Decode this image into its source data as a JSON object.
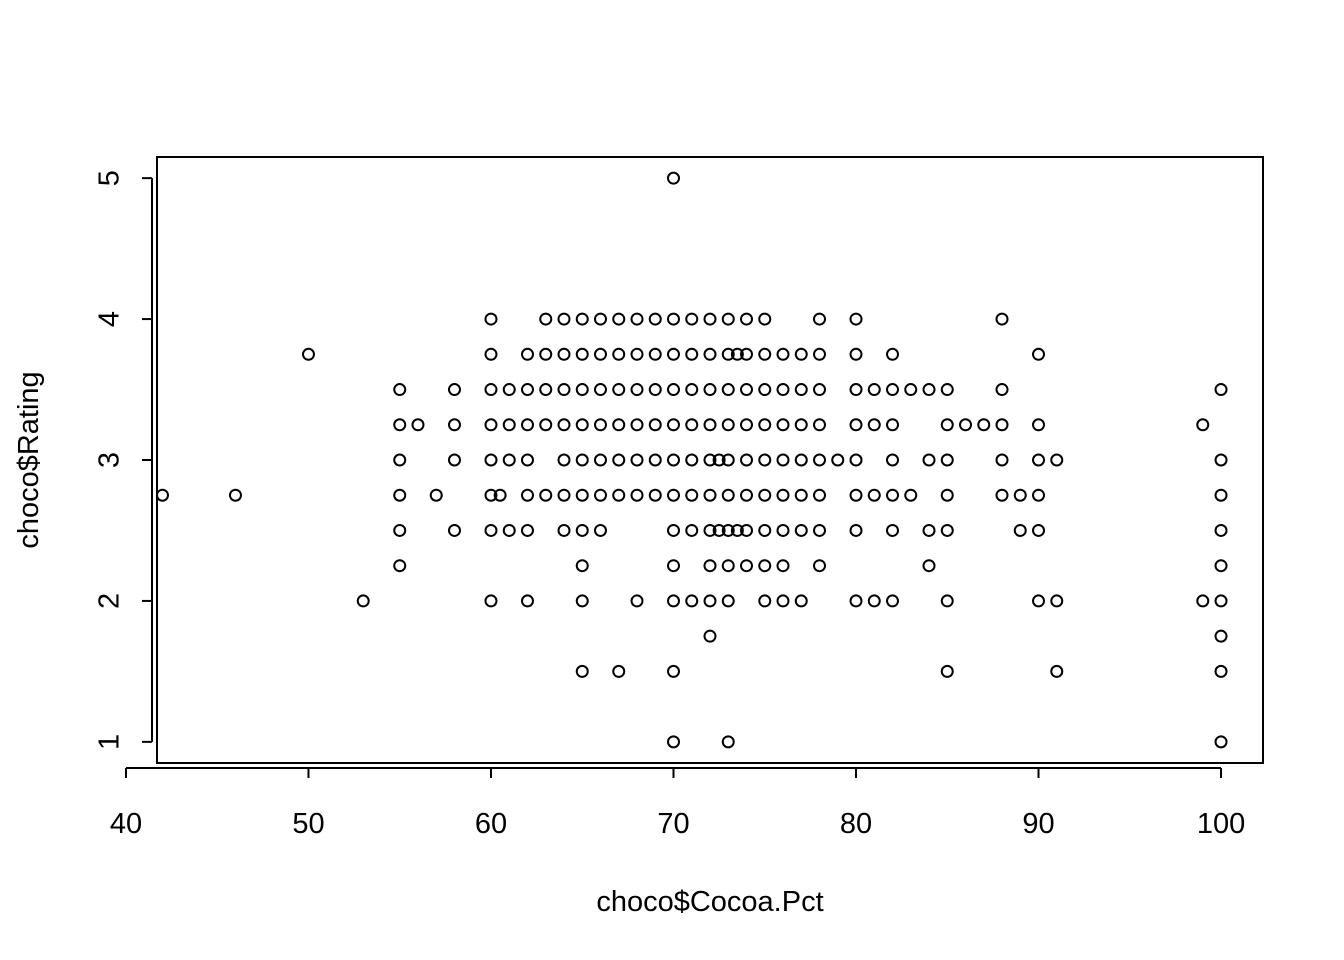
{
  "chart_data": {
    "type": "scatter",
    "xlabel": "choco$Cocoa.Pct",
    "ylabel": "choco$Rating",
    "x_ticks": [
      40,
      50,
      60,
      70,
      80,
      90,
      100
    ],
    "y_ticks": [
      1,
      2,
      3,
      4,
      5
    ],
    "xlim": [
      41.7,
      102.3
    ],
    "ylim": [
      0.85,
      5.15
    ],
    "grid": false,
    "legend": "none",
    "points": [
      [
        70,
        5
      ],
      [
        60,
        4
      ],
      [
        63,
        4
      ],
      [
        64,
        4
      ],
      [
        65,
        4
      ],
      [
        66,
        4
      ],
      [
        67,
        4
      ],
      [
        68,
        4
      ],
      [
        69,
        4
      ],
      [
        70,
        4
      ],
      [
        71,
        4
      ],
      [
        72,
        4
      ],
      [
        73,
        4
      ],
      [
        74,
        4
      ],
      [
        75,
        4
      ],
      [
        78,
        4
      ],
      [
        80,
        4
      ],
      [
        88,
        4
      ],
      [
        50,
        3.75
      ],
      [
        60,
        3.75
      ],
      [
        62,
        3.75
      ],
      [
        63,
        3.75
      ],
      [
        64,
        3.75
      ],
      [
        65,
        3.75
      ],
      [
        66,
        3.75
      ],
      [
        67,
        3.75
      ],
      [
        68,
        3.75
      ],
      [
        69,
        3.75
      ],
      [
        70,
        3.75
      ],
      [
        71,
        3.75
      ],
      [
        72,
        3.75
      ],
      [
        73,
        3.75
      ],
      [
        73.5,
        3.75
      ],
      [
        74,
        3.75
      ],
      [
        75,
        3.75
      ],
      [
        76,
        3.75
      ],
      [
        77,
        3.75
      ],
      [
        78,
        3.75
      ],
      [
        80,
        3.75
      ],
      [
        82,
        3.75
      ],
      [
        90,
        3.75
      ],
      [
        55,
        3.5
      ],
      [
        58,
        3.5
      ],
      [
        60,
        3.5
      ],
      [
        61,
        3.5
      ],
      [
        62,
        3.5
      ],
      [
        63,
        3.5
      ],
      [
        64,
        3.5
      ],
      [
        65,
        3.5
      ],
      [
        66,
        3.5
      ],
      [
        67,
        3.5
      ],
      [
        68,
        3.5
      ],
      [
        69,
        3.5
      ],
      [
        70,
        3.5
      ],
      [
        71,
        3.5
      ],
      [
        72,
        3.5
      ],
      [
        73,
        3.5
      ],
      [
        74,
        3.5
      ],
      [
        75,
        3.5
      ],
      [
        76,
        3.5
      ],
      [
        77,
        3.5
      ],
      [
        78,
        3.5
      ],
      [
        80,
        3.5
      ],
      [
        81,
        3.5
      ],
      [
        82,
        3.5
      ],
      [
        83,
        3.5
      ],
      [
        84,
        3.5
      ],
      [
        85,
        3.5
      ],
      [
        88,
        3.5
      ],
      [
        100,
        3.5
      ],
      [
        55,
        3.25
      ],
      [
        56,
        3.25
      ],
      [
        58,
        3.25
      ],
      [
        60,
        3.25
      ],
      [
        61,
        3.25
      ],
      [
        62,
        3.25
      ],
      [
        63,
        3.25
      ],
      [
        64,
        3.25
      ],
      [
        65,
        3.25
      ],
      [
        66,
        3.25
      ],
      [
        67,
        3.25
      ],
      [
        68,
        3.25
      ],
      [
        69,
        3.25
      ],
      [
        70,
        3.25
      ],
      [
        71,
        3.25
      ],
      [
        72,
        3.25
      ],
      [
        73,
        3.25
      ],
      [
        74,
        3.25
      ],
      [
        75,
        3.25
      ],
      [
        76,
        3.25
      ],
      [
        77,
        3.25
      ],
      [
        78,
        3.25
      ],
      [
        80,
        3.25
      ],
      [
        81,
        3.25
      ],
      [
        82,
        3.25
      ],
      [
        85,
        3.25
      ],
      [
        86,
        3.25
      ],
      [
        87,
        3.25
      ],
      [
        88,
        3.25
      ],
      [
        90,
        3.25
      ],
      [
        99,
        3.25
      ],
      [
        55,
        3
      ],
      [
        58,
        3
      ],
      [
        60,
        3
      ],
      [
        61,
        3
      ],
      [
        62,
        3
      ],
      [
        64,
        3
      ],
      [
        65,
        3
      ],
      [
        66,
        3
      ],
      [
        67,
        3
      ],
      [
        68,
        3
      ],
      [
        69,
        3
      ],
      [
        70,
        3
      ],
      [
        71,
        3
      ],
      [
        72,
        3
      ],
      [
        72.5,
        3
      ],
      [
        73,
        3
      ],
      [
        74,
        3
      ],
      [
        75,
        3
      ],
      [
        76,
        3
      ],
      [
        77,
        3
      ],
      [
        78,
        3
      ],
      [
        79,
        3
      ],
      [
        80,
        3
      ],
      [
        82,
        3
      ],
      [
        84,
        3
      ],
      [
        85,
        3
      ],
      [
        88,
        3
      ],
      [
        90,
        3
      ],
      [
        91,
        3
      ],
      [
        100,
        3
      ],
      [
        42,
        2.75
      ],
      [
        46,
        2.75
      ],
      [
        55,
        2.75
      ],
      [
        57,
        2.75
      ],
      [
        60,
        2.75
      ],
      [
        60.5,
        2.75
      ],
      [
        62,
        2.75
      ],
      [
        63,
        2.75
      ],
      [
        64,
        2.75
      ],
      [
        65,
        2.75
      ],
      [
        66,
        2.75
      ],
      [
        67,
        2.75
      ],
      [
        68,
        2.75
      ],
      [
        69,
        2.75
      ],
      [
        70,
        2.75
      ],
      [
        71,
        2.75
      ],
      [
        72,
        2.75
      ],
      [
        73,
        2.75
      ],
      [
        74,
        2.75
      ],
      [
        75,
        2.75
      ],
      [
        76,
        2.75
      ],
      [
        77,
        2.75
      ],
      [
        78,
        2.75
      ],
      [
        80,
        2.75
      ],
      [
        81,
        2.75
      ],
      [
        82,
        2.75
      ],
      [
        83,
        2.75
      ],
      [
        85,
        2.75
      ],
      [
        88,
        2.75
      ],
      [
        89,
        2.75
      ],
      [
        90,
        2.75
      ],
      [
        100,
        2.75
      ],
      [
        55,
        2.5
      ],
      [
        58,
        2.5
      ],
      [
        60,
        2.5
      ],
      [
        61,
        2.5
      ],
      [
        62,
        2.5
      ],
      [
        64,
        2.5
      ],
      [
        65,
        2.5
      ],
      [
        66,
        2.5
      ],
      [
        70,
        2.5
      ],
      [
        71,
        2.5
      ],
      [
        72,
        2.5
      ],
      [
        72.5,
        2.5
      ],
      [
        73,
        2.5
      ],
      [
        73.5,
        2.5
      ],
      [
        74,
        2.5
      ],
      [
        75,
        2.5
      ],
      [
        76,
        2.5
      ],
      [
        77,
        2.5
      ],
      [
        78,
        2.5
      ],
      [
        80,
        2.5
      ],
      [
        82,
        2.5
      ],
      [
        84,
        2.5
      ],
      [
        85,
        2.5
      ],
      [
        89,
        2.5
      ],
      [
        90,
        2.5
      ],
      [
        100,
        2.5
      ],
      [
        55,
        2.25
      ],
      [
        65,
        2.25
      ],
      [
        70,
        2.25
      ],
      [
        72,
        2.25
      ],
      [
        73,
        2.25
      ],
      [
        74,
        2.25
      ],
      [
        75,
        2.25
      ],
      [
        76,
        2.25
      ],
      [
        78,
        2.25
      ],
      [
        84,
        2.25
      ],
      [
        100,
        2.25
      ],
      [
        53,
        2
      ],
      [
        60,
        2
      ],
      [
        62,
        2
      ],
      [
        65,
        2
      ],
      [
        68,
        2
      ],
      [
        70,
        2
      ],
      [
        71,
        2
      ],
      [
        72,
        2
      ],
      [
        73,
        2
      ],
      [
        75,
        2
      ],
      [
        76,
        2
      ],
      [
        77,
        2
      ],
      [
        80,
        2
      ],
      [
        81,
        2
      ],
      [
        82,
        2
      ],
      [
        85,
        2
      ],
      [
        90,
        2
      ],
      [
        91,
        2
      ],
      [
        99,
        2
      ],
      [
        100,
        2
      ],
      [
        72,
        1.75
      ],
      [
        100,
        1.75
      ],
      [
        65,
        1.5
      ],
      [
        67,
        1.5
      ],
      [
        70,
        1.5
      ],
      [
        85,
        1.5
      ],
      [
        91,
        1.5
      ],
      [
        100,
        1.5
      ],
      [
        70,
        1
      ],
      [
        73,
        1
      ],
      [
        100,
        1
      ]
    ]
  }
}
